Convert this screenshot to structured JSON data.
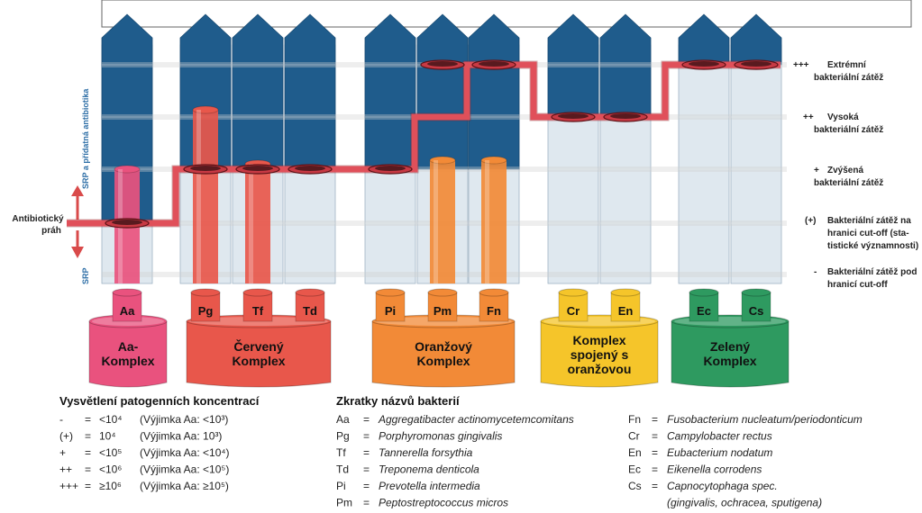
{
  "axis": {
    "up_label": "SRP a přídatná antibiotika",
    "down_label": "SRP",
    "threshold_label_1": "Antibiotický",
    "threshold_label_2": "práh"
  },
  "levels": [
    {
      "symbol": "+++",
      "line1": "Extrémní",
      "line2": "bakteriální zátěž",
      "line3": ""
    },
    {
      "symbol": "++",
      "line1": "Vysoká",
      "line2": "bakteriální zátěž",
      "line3": ""
    },
    {
      "symbol": "+",
      "line1": "Zvýšená",
      "line2": "bakteriální zátěž",
      "line3": ""
    },
    {
      "symbol": "(+)",
      "line1": "Bakteriální zátěž na",
      "line2": "hranici cut-off (sta-",
      "line3": "tistické významnosti)"
    },
    {
      "symbol": "-",
      "line1": "Bakteriální zátěž pod",
      "line2": "hranicí cut-off",
      "line3": ""
    }
  ],
  "complexes": [
    {
      "name_line1": "Aa-",
      "name_line2": "Komplex",
      "name_line3": "",
      "tubes": [
        "Aa"
      ],
      "color": "#e9527e"
    },
    {
      "name_line1": "Červený",
      "name_line2": "Komplex",
      "name_line3": "",
      "tubes": [
        "Pg",
        "Tf",
        "Td"
      ],
      "color": "#e8574b"
    },
    {
      "name_line1": "Oranžový",
      "name_line2": "Komplex",
      "name_line3": "",
      "tubes": [
        "Pi",
        "Pm",
        "Fn"
      ],
      "color": "#f28a37"
    },
    {
      "name_line1": "Komplex",
      "name_line2": "spojený s",
      "name_line3": "oranžovou",
      "tubes": [
        "Cr",
        "En"
      ],
      "color": "#f5c52a"
    },
    {
      "name_line1": "Zelený",
      "name_line2": "Komplex",
      "name_line3": "",
      "tubes": [
        "Ec",
        "Cs"
      ],
      "color": "#2e9a60"
    }
  ],
  "explanation": {
    "title": "Vysvětlení patogenních koncentrací",
    "rows": [
      {
        "sym": "-",
        "eq": "=",
        "val": "<10⁴",
        "exc": "(Výjimka Aa: <10³)"
      },
      {
        "sym": "(+)",
        "eq": "=",
        "val": "10⁴",
        "exc": "(Výjimka Aa: 10³)"
      },
      {
        "sym": "+",
        "eq": "=",
        "val": "<10⁵",
        "exc": "(Výjimka Aa: <10⁴)"
      },
      {
        "sym": "++",
        "eq": "=",
        "val": "<10⁶",
        "exc": "(Výjimka Aa: <10⁵)"
      },
      {
        "sym": "+++",
        "eq": "=",
        "val": "≥10⁶",
        "exc": "(Výjimka Aa: ≥10⁵)"
      }
    ]
  },
  "abbreviations": {
    "title": "Zkratky názvů bakterií",
    "left": [
      {
        "abbr": "Aa",
        "name": "Aggregatibacter actinomycetemcomitans"
      },
      {
        "abbr": "Pg",
        "name": "Porphyromonas gingivalis"
      },
      {
        "abbr": "Tf",
        "name": "Tannerella forsythia"
      },
      {
        "abbr": "Td",
        "name": "Treponema denticola"
      },
      {
        "abbr": "Pi",
        "name": "Prevotella intermedia"
      },
      {
        "abbr": "Pm",
        "name": "Peptostreptococcus micros"
      }
    ],
    "right": [
      {
        "abbr": "Fn",
        "name": "Fusobacterium nucleatum/periodonticum"
      },
      {
        "abbr": "Cr",
        "name": "Campylobacter rectus"
      },
      {
        "abbr": "En",
        "name": "Eubacterium nodatum"
      },
      {
        "abbr": "Ec",
        "name": "Eikenella corrodens"
      },
      {
        "abbr": "Cs",
        "name": "Capnocytophaga spec."
      },
      {
        "abbr": "",
        "name": "(gingivalis, ochracea, sputigena)"
      }
    ]
  },
  "colors": {
    "tooth_blue": "#1f5c8c",
    "tooth_light": "#dfe8ef",
    "threshold_line": "#e0505a"
  }
}
